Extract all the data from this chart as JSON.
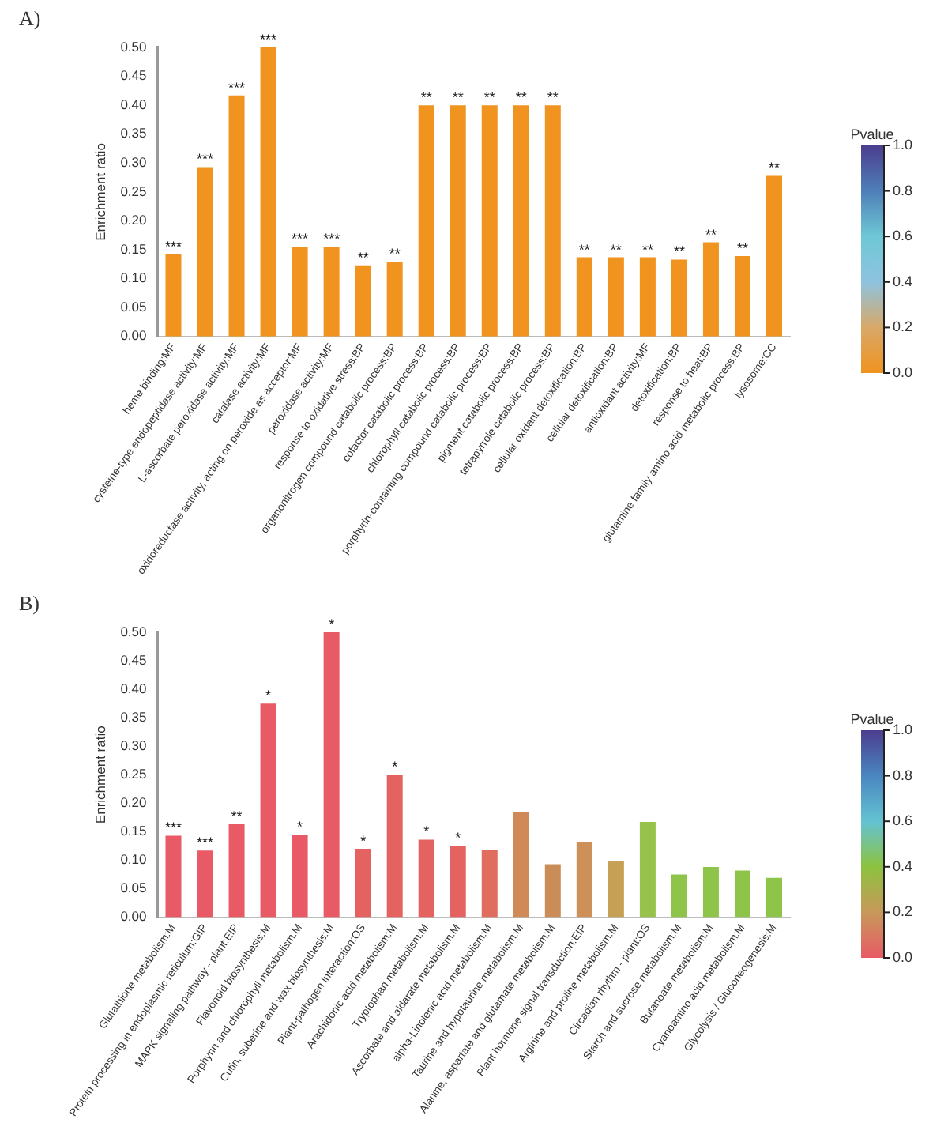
{
  "chart_data": [
    {
      "type": "bar",
      "title": "A)",
      "ylabel": "Enrichment ratio",
      "clabel": "Pvalue",
      "clim": [
        0,
        1
      ],
      "cticks": [
        {
          "value": 0,
          "label": "0.0"
        },
        {
          "value": 0.2,
          "label": "0.2"
        },
        {
          "value": 0.4,
          "label": "0.4"
        },
        {
          "value": 0.6,
          "label": "0.6"
        },
        {
          "value": 0.8,
          "label": "0.8"
        },
        {
          "value": 1,
          "label": "1.0"
        }
      ],
      "categories": [
        "heme binding:MF",
        "cysteine-type endopeptidase activity:MF",
        "L-ascorbate peroxidase activity:MF",
        "catalase activity:MF",
        "oxidoreductase activity, acting on peroxide as acceptor:MF",
        "peroxidase activity:MF",
        "response to oxidative stress:BP",
        "organonitrogen compound catabolic process:BP",
        "cofactor catabolic process:BP",
        "chlorophyll catabolic process:BP",
        "porphyrin-containing compound catabolic process:BP",
        "pigment catabolic process:BP",
        "tetrapyrrole catabolic process:BP",
        "cellular oxidant detoxification:BP",
        "cellular detoxification:BP",
        "antioxidant activity:MF",
        "detoxification:BP",
        "response to heat:BP",
        "glutamine family amino acid metabolic process:BP",
        "lysosome:CC"
      ],
      "values": [
        0.142,
        0.293,
        0.417,
        0.5,
        0.155,
        0.155,
        0.123,
        0.129,
        0.4,
        0.4,
        0.4,
        0.4,
        0.4,
        0.137,
        0.137,
        0.137,
        0.133,
        0.163,
        0.139,
        0.278
      ],
      "colors": [
        "#f0931f",
        "#f0931f",
        "#f0931f",
        "#f0931f",
        "#f0931f",
        "#f0931f",
        "#f0931f",
        "#f0931f",
        "#f0931f",
        "#f0931f",
        "#f0931f",
        "#f0931f",
        "#f0931f",
        "#f0931f",
        "#f0931f",
        "#f0931f",
        "#f0931f",
        "#f0931f",
        "#f0931f",
        "#f0931f"
      ],
      "ylim": [
        0,
        0.5
      ],
      "yticks": [
        {
          "value": 0,
          "label": "0.00"
        },
        {
          "value": 0.05,
          "label": "0.05"
        },
        {
          "value": 0.1,
          "label": "0.10"
        },
        {
          "value": 0.15,
          "label": "0.15"
        },
        {
          "value": 0.2,
          "label": "0.20"
        },
        {
          "value": 0.25,
          "label": "0.25"
        },
        {
          "value": 0.3,
          "label": "0.30"
        },
        {
          "value": 0.35,
          "label": "0.35"
        },
        {
          "value": 0.4,
          "label": "0.40"
        },
        {
          "value": 0.45,
          "label": "0.45"
        },
        {
          "value": 0.5,
          "label": "0.50"
        }
      ],
      "annotations": [
        {
          "text": "***",
          "x": "heme binding:MF",
          "y": 0.142
        },
        {
          "text": "***",
          "x": "cysteine-type endopeptidase activity:MF",
          "y": 0.293
        },
        {
          "text": "***",
          "x": "L-ascorbate peroxidase activity:MF",
          "y": 0.417
        },
        {
          "text": "***",
          "x": "catalase activity:MF",
          "y": 0.5
        },
        {
          "text": "***",
          "x": "oxidoreductase activity, acting on peroxide as acceptor:MF",
          "y": 0.155
        },
        {
          "text": "***",
          "x": "peroxidase activity:MF",
          "y": 0.155
        },
        {
          "text": "**",
          "x": "response to oxidative stress:BP",
          "y": 0.123
        },
        {
          "text": "**",
          "x": "organonitrogen compound catabolic process:BP",
          "y": 0.129
        },
        {
          "text": "**",
          "x": "cofactor catabolic process:BP",
          "y": 0.4
        },
        {
          "text": "**",
          "x": "chlorophyll catabolic process:BP",
          "y": 0.4
        },
        {
          "text": "**",
          "x": "porphyrin-containing compound catabolic process:BP",
          "y": 0.4
        },
        {
          "text": "**",
          "x": "pigment catabolic process:BP",
          "y": 0.4
        },
        {
          "text": "**",
          "x": "tetrapyrrole catabolic process:BP",
          "y": 0.4
        },
        {
          "text": "**",
          "x": "cellular oxidant detoxification:BP",
          "y": 0.137
        },
        {
          "text": "**",
          "x": "cellular detoxification:BP",
          "y": 0.137
        },
        {
          "text": "**",
          "x": "antioxidant activity:MF",
          "y": 0.137
        },
        {
          "text": "**",
          "x": "detoxification:BP",
          "y": 0.133
        },
        {
          "text": "**",
          "x": "response to heat:BP",
          "y": 0.163
        },
        {
          "text": "**",
          "x": "glutamine family amino acid metabolic process:BP",
          "y": 0.139
        },
        {
          "text": "**",
          "x": "lysosome:CC",
          "y": 0.278
        }
      ]
    },
    {
      "type": "bar",
      "title": "B)",
      "ylabel": "Enrichment ratio",
      "clabel": "Pvalue",
      "clim": [
        0,
        1
      ],
      "cticks": [
        {
          "value": 0,
          "label": "0.0"
        },
        {
          "value": 0.2,
          "label": "0.2"
        },
        {
          "value": 0.4,
          "label": "0.4"
        },
        {
          "value": 0.6,
          "label": "0.6"
        },
        {
          "value": 0.8,
          "label": "0.8"
        },
        {
          "value": 1,
          "label": "1.0"
        }
      ],
      "categories": [
        "Glutathione metabolism:M",
        "Protein processing in endoplasmic reticulum:GIP",
        "MAPK signaling pathway - plant:EIP",
        "Flavonoid biosynthesis:M",
        "Porphyrin and chlorophyll metabolism:M",
        "Cutin, suberine and wax biosynthesis:M",
        "Plant-pathogen interaction:OS",
        "Arachidonic acid metabolism:M",
        "Tryptophan metabolism:M",
        "Ascorbate and aldarate metabolism:M",
        "alpha-Linolenic acid metabolism:M",
        "Taurine and hypotaurine metabolism:M",
        "Alanine, aspartate and glutamate metabolism:M",
        "Plant hormone signal transduction:EIP",
        "Arginine and proline metabolism:M",
        "Circadian rhythm - plant:OS",
        "Starch and sucrose metabolism:M",
        "Butanoate metabolism:M",
        "Cyanoamino acid metabolism:M",
        "Glycolysis / Gluconeogenesis:M"
      ],
      "values": [
        0.143,
        0.117,
        0.163,
        0.375,
        0.145,
        0.5,
        0.12,
        0.25,
        0.136,
        0.125,
        0.118,
        0.184,
        0.093,
        0.131,
        0.098,
        0.167,
        0.075,
        0.088,
        0.082,
        0.069
      ],
      "colors": [
        "#e85a66",
        "#e85a66",
        "#e85a66",
        "#e85a66",
        "#e85a66",
        "#e85a66",
        "#e4625f",
        "#e4625f",
        "#e4625f",
        "#e4625f",
        "#df6e5e",
        "#cf8a58",
        "#cb8d58",
        "#cc9058",
        "#c5a055",
        "#97c34c",
        "#8fc44a",
        "#8fc44a",
        "#8fc44a",
        "#8fc44a"
      ],
      "ylim": [
        0,
        0.5
      ],
      "yticks": [
        {
          "value": 0,
          "label": "0.00"
        },
        {
          "value": 0.05,
          "label": "0.05"
        },
        {
          "value": 0.1,
          "label": "0.10"
        },
        {
          "value": 0.15,
          "label": "0.15"
        },
        {
          "value": 0.2,
          "label": "0.20"
        },
        {
          "value": 0.25,
          "label": "0.25"
        },
        {
          "value": 0.3,
          "label": "0.30"
        },
        {
          "value": 0.35,
          "label": "0.35"
        },
        {
          "value": 0.4,
          "label": "0.40"
        },
        {
          "value": 0.45,
          "label": "0.45"
        },
        {
          "value": 0.5,
          "label": "0.50"
        }
      ],
      "annotations": [
        {
          "text": "***",
          "x": "Glutathione metabolism:M",
          "y": 0.143
        },
        {
          "text": "***",
          "x": "Protein processing in endoplasmic reticulum:GIP",
          "y": 0.117
        },
        {
          "text": "**",
          "x": "MAPK signaling pathway - plant:EIP",
          "y": 0.163
        },
        {
          "text": "*",
          "x": "Flavonoid biosynthesis:M",
          "y": 0.375
        },
        {
          "text": "*",
          "x": "Porphyrin and chlorophyll metabolism:M",
          "y": 0.145
        },
        {
          "text": "*",
          "x": "Cutin, suberine and wax biosynthesis:M",
          "y": 0.5
        },
        {
          "text": "*",
          "x": "Plant-pathogen interaction:OS",
          "y": 0.12
        },
        {
          "text": "*",
          "x": "Arachidonic acid metabolism:M",
          "y": 0.25
        },
        {
          "text": "*",
          "x": "Tryptophan metabolism:M",
          "y": 0.136
        },
        {
          "text": "*",
          "x": "Ascorbate and aldarate metabolism:M",
          "y": 0.125
        }
      ]
    }
  ]
}
